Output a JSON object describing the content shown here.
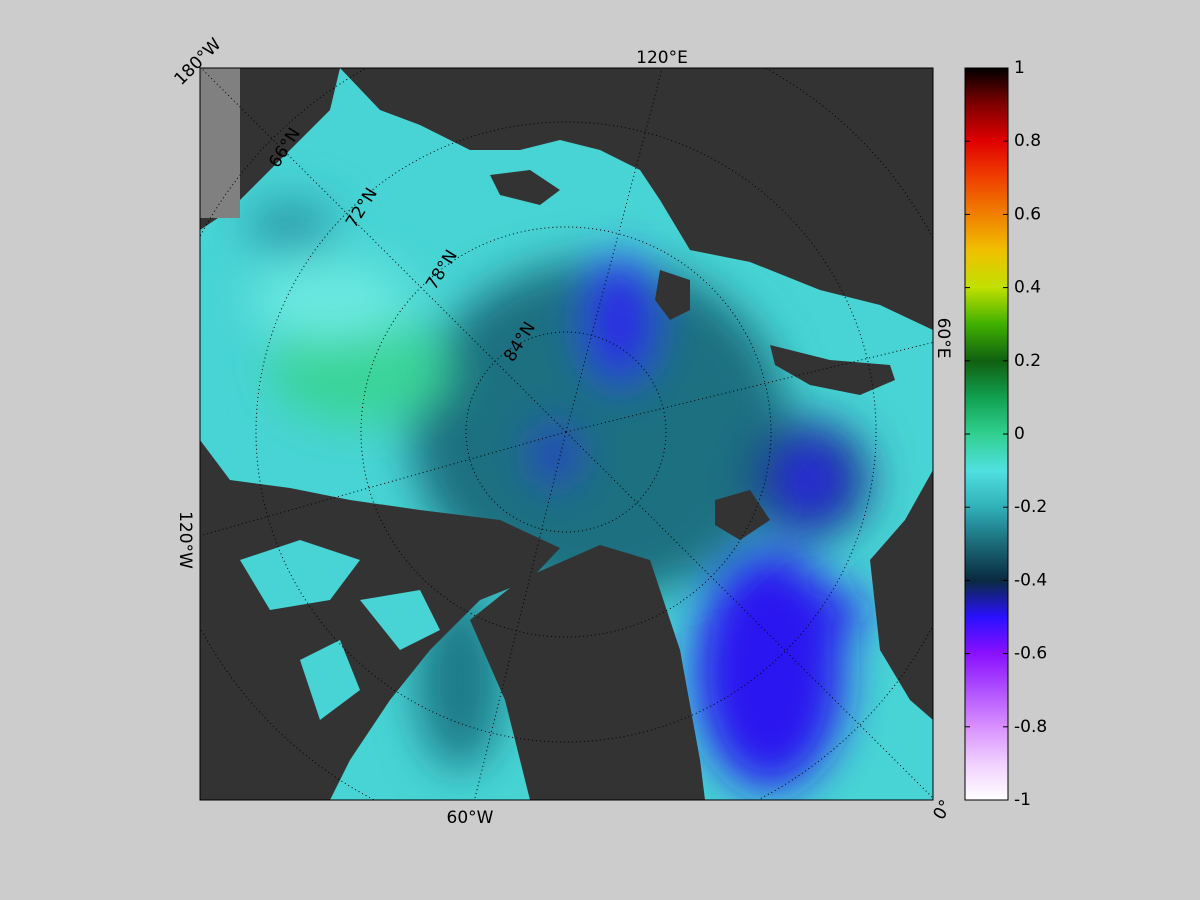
{
  "map": {
    "lon_labels": [
      "180°W",
      "120°E",
      "60°E",
      "0°",
      "60°W",
      "120°W"
    ],
    "lat_labels": [
      "66°N",
      "72°N",
      "78°N",
      "84°N"
    ]
  },
  "colorbar": {
    "lim": [
      -1,
      1
    ],
    "ticks": [
      1,
      0.8,
      0.6,
      0.4,
      0.2,
      0,
      -0.2,
      -0.4,
      -0.6,
      -0.8,
      -1
    ],
    "colors": [
      "#ffffff",
      "#f0d0ff",
      "#d890ff",
      "#b050ff",
      "#8a10ff",
      "#2a10ff",
      "#0a2a40",
      "#1a6a78",
      "#30b0b8",
      "#50e0e0",
      "#30d090",
      "#10a050",
      "#106010",
      "#40b000",
      "#c0e000",
      "#f0c000",
      "#f08000",
      "#f04000",
      "#e00000",
      "#800000",
      "#000000"
    ]
  }
}
